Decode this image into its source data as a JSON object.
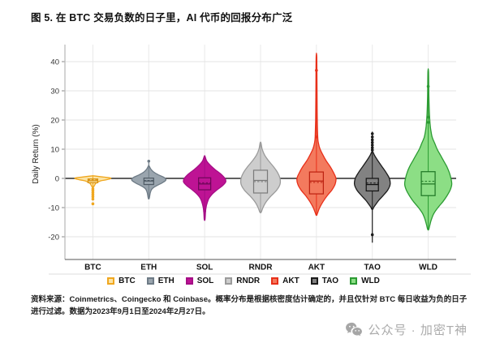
{
  "page": {
    "title": "图 5. 在 BTC 交易负数的日子里，AI 代币的回报分布广泛",
    "source_note": "资料来源：Coinmetrics、Coingecko 和 Coinbase。概率分布是根据核密度估计确定的，并且仅针对 BTC 每日收益为负的日子进行过滤。数据为2023年9月1日至2024年2月27日。",
    "watermark": {
      "label": "公众号 · 加密T神",
      "icon": "wechat-icon",
      "color": "#ababab"
    }
  },
  "chart_data": {
    "type": "violin",
    "title": "图 5. 在 BTC 交易负数的日子里，AI 代币的回报分布广泛",
    "xlabel": "",
    "ylabel": "Daily Return (%)",
    "ylim": [
      -28,
      45
    ],
    "yticks": [
      40,
      30,
      20,
      10,
      0,
      -10,
      -20
    ],
    "grid": true,
    "zero_line": true,
    "legend_position": "bottom",
    "categories": [
      "BTC",
      "ETH",
      "SOL",
      "RNDR",
      "AKT",
      "TAO",
      "WLD"
    ],
    "series": [
      {
        "name": "BTC",
        "color": "#F0A71F",
        "fill": "#FBE4A6",
        "box_stroke": "#D8900F",
        "profile": [
          [
            0.9,
            0.4
          ],
          [
            0.5,
            12
          ],
          [
            0.1,
            22
          ],
          [
            -0.4,
            18
          ],
          [
            -0.9,
            9
          ],
          [
            -1.6,
            4
          ],
          [
            -2.4,
            2
          ],
          [
            -3,
            0.8
          ]
        ],
        "whisker": [
          0.9,
          -3.0
        ],
        "outliers": [
          -3.6,
          -4.2,
          -4.9,
          -5.6,
          -6.3,
          -7.1,
          -8.7
        ],
        "box": {
          "q3": -0.2,
          "median": -0.8,
          "mean": -0.5,
          "q1": -1.5,
          "halfwidth": 6
        }
      },
      {
        "name": "ETH",
        "color": "#6E7B86",
        "fill": "#9AA5AE",
        "box_stroke": "#4E5A64",
        "profile": [
          [
            4.3,
            0.4
          ],
          [
            3.2,
            2.5
          ],
          [
            2.2,
            6
          ],
          [
            1.2,
            12
          ],
          [
            0.3,
            19
          ],
          [
            -0.6,
            21
          ],
          [
            -1.6,
            16
          ],
          [
            -2.6,
            9
          ],
          [
            -3.6,
            4
          ],
          [
            -4.8,
            2
          ],
          [
            -6.8,
            0.6
          ]
        ],
        "whisker": [
          6.2,
          -7.0
        ],
        "outliers": [
          5.9
        ],
        "box": {
          "q3": 0.1,
          "median": -0.9,
          "mean": -0.7,
          "q1": -2.1,
          "halfwidth": 6
        }
      },
      {
        "name": "SOL",
        "color": "#A50E86",
        "fill": "#BE1394",
        "box_stroke": "#6E0758",
        "profile": [
          [
            7.6,
            0.4
          ],
          [
            6,
            2.5
          ],
          [
            4.5,
            7
          ],
          [
            3,
            13
          ],
          [
            1.5,
            20
          ],
          [
            0,
            25
          ],
          [
            -1.2,
            26
          ],
          [
            -2.5,
            22
          ],
          [
            -4,
            15
          ],
          [
            -5.5,
            9
          ],
          [
            -7,
            5
          ],
          [
            -9,
            2.5
          ],
          [
            -11,
            1.2
          ],
          [
            -14,
            0.5
          ]
        ],
        "whisker": [
          7.6,
          -14.5
        ],
        "outliers": [
          -11.2
        ],
        "box": {
          "q3": 0.2,
          "median": -1.9,
          "mean": -1.5,
          "q1": -3.9,
          "halfwidth": 7.5
        }
      },
      {
        "name": "RNDR",
        "color": "#9B9B9B",
        "fill": "#CDCDCD",
        "box_stroke": "#7A7A7A",
        "profile": [
          [
            12.2,
            0.5
          ],
          [
            10,
            2
          ],
          [
            8,
            5
          ],
          [
            6,
            10
          ],
          [
            4,
            16
          ],
          [
            2,
            21
          ],
          [
            0,
            24
          ],
          [
            -2,
            24
          ],
          [
            -4,
            20
          ],
          [
            -6,
            13
          ],
          [
            -8,
            7
          ],
          [
            -10,
            3
          ],
          [
            -11.6,
            0.8
          ]
        ],
        "whisker": [
          12.2,
          -11.8
        ],
        "outliers": [],
        "box": {
          "q3": 2.8,
          "median": -0.7,
          "mean": -1.1,
          "q1": -5.0,
          "halfwidth": 8.5
        }
      },
      {
        "name": "AKT",
        "color": "#E8301A",
        "fill": "#F37A5E",
        "box_stroke": "#BC2110",
        "profile": [
          [
            41.5,
            0.4
          ],
          [
            30,
            0.7
          ],
          [
            20,
            1
          ],
          [
            14,
            1.6
          ],
          [
            12,
            2.5
          ],
          [
            10,
            4.5
          ],
          [
            8,
            8
          ],
          [
            6,
            12
          ],
          [
            4,
            17
          ],
          [
            2,
            21
          ],
          [
            0,
            24
          ],
          [
            -2,
            23
          ],
          [
            -4,
            19
          ],
          [
            -6,
            13
          ],
          [
            -8,
            8
          ],
          [
            -10,
            4
          ],
          [
            -12,
            1.2
          ],
          [
            -12.6,
            0.4
          ]
        ],
        "whisker": [
          41.5,
          -12.6
        ],
        "outliers": [
          37,
          14.2
        ],
        "box": {
          "q3": 2.2,
          "median": -0.9,
          "mean": -1.4,
          "q1": -5.3,
          "halfwidth": 8.5
        }
      },
      {
        "name": "TAO",
        "color": "#1B1B1B",
        "fill": "#828282",
        "box_stroke": "#111111",
        "profile": [
          [
            9,
            0.8
          ],
          [
            8,
            2.5
          ],
          [
            6,
            7
          ],
          [
            4,
            12
          ],
          [
            2,
            17
          ],
          [
            0,
            21
          ],
          [
            -2,
            22
          ],
          [
            -4,
            19
          ],
          [
            -6,
            13
          ],
          [
            -7.5,
            8
          ],
          [
            -9,
            4
          ],
          [
            -10,
            1.5
          ],
          [
            -10.5,
            0.8
          ]
        ],
        "whisker": [
          16,
          -22
        ],
        "outliers": [
          15.3,
          14.2,
          13.2,
          12.3,
          11.4,
          10.5,
          9.7,
          -19.3
        ],
        "box": {
          "q3": 0.0,
          "median": -2.1,
          "mean": -1.6,
          "q1": -4.3,
          "halfwidth": 7.5
        }
      },
      {
        "name": "WLD",
        "color": "#2C9B33",
        "fill": "#8CDE85",
        "box_stroke": "#1E7524",
        "profile": [
          [
            36.5,
            0.4
          ],
          [
            28,
            0.8
          ],
          [
            22,
            1.5
          ],
          [
            18,
            2.5
          ],
          [
            16,
            3.5
          ],
          [
            14,
            5
          ],
          [
            12,
            8
          ],
          [
            10,
            11
          ],
          [
            8,
            15
          ],
          [
            6,
            19
          ],
          [
            4,
            23
          ],
          [
            2,
            26
          ],
          [
            0,
            28
          ],
          [
            -2,
            29
          ],
          [
            -4,
            27
          ],
          [
            -6,
            23
          ],
          [
            -8,
            18
          ],
          [
            -10,
            12
          ],
          [
            -12,
            7
          ],
          [
            -14,
            4
          ],
          [
            -16,
            2
          ],
          [
            -17.5,
            0.6
          ]
        ],
        "whisker": [
          36.5,
          -17.5
        ],
        "outliers": [
          31.5,
          21,
          19.2
        ],
        "box": {
          "q3": 2.3,
          "median": -1.9,
          "mean": -1.0,
          "q1": -5.9,
          "halfwidth": 8.5
        }
      }
    ]
  }
}
